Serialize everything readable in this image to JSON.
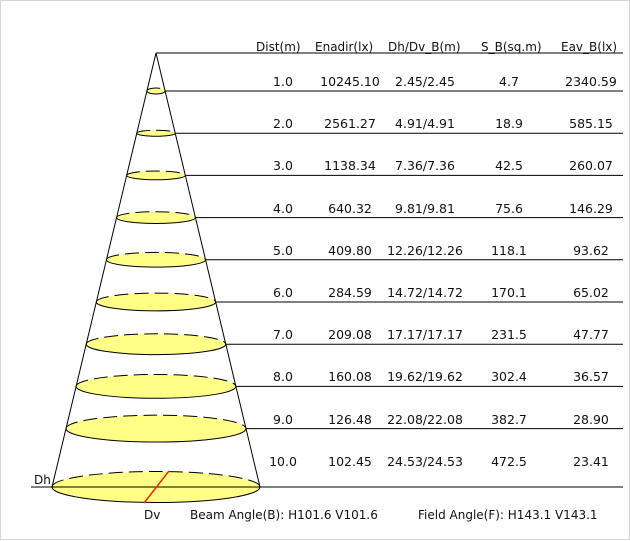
{
  "headers": {
    "dist": "Dist(m)",
    "enadir": "Enadir(lx)",
    "dh_dv": "Dh/Dv_B(m)",
    "s_b": "S_B(sq.m)",
    "eav_b": "Eav_B(lx)"
  },
  "rows": [
    {
      "dist": "1.0",
      "enadir": "10245.10",
      "dh_dv": "2.45/2.45",
      "s_b": "4.7",
      "eav_b": "2340.59"
    },
    {
      "dist": "2.0",
      "enadir": "2561.27",
      "dh_dv": "4.91/4.91",
      "s_b": "18.9",
      "eav_b": "585.15"
    },
    {
      "dist": "3.0",
      "enadir": "1138.34",
      "dh_dv": "7.36/7.36",
      "s_b": "42.5",
      "eav_b": "260.07"
    },
    {
      "dist": "4.0",
      "enadir": "640.32",
      "dh_dv": "9.81/9.81",
      "s_b": "75.6",
      "eav_b": "146.29"
    },
    {
      "dist": "5.0",
      "enadir": "409.80",
      "dh_dv": "12.26/12.26",
      "s_b": "118.1",
      "eav_b": "93.62"
    },
    {
      "dist": "6.0",
      "enadir": "284.59",
      "dh_dv": "14.72/14.72",
      "s_b": "170.1",
      "eav_b": "65.02"
    },
    {
      "dist": "7.0",
      "enadir": "209.08",
      "dh_dv": "17.17/17.17",
      "s_b": "231.5",
      "eav_b": "47.77"
    },
    {
      "dist": "8.0",
      "enadir": "160.08",
      "dh_dv": "19.62/19.62",
      "s_b": "302.4",
      "eav_b": "36.57"
    },
    {
      "dist": "9.0",
      "enadir": "126.48",
      "dh_dv": "22.08/22.08",
      "s_b": "382.7",
      "eav_b": "28.90"
    },
    {
      "dist": "10.0",
      "enadir": "102.45",
      "dh_dv": "24.53/24.53",
      "s_b": "472.5",
      "eav_b": "23.41"
    }
  ],
  "labels": {
    "dh": "Dh",
    "dv": "Dv"
  },
  "beam_caption": "Beam Angle(B): H101.6 V101.6",
  "field_caption": "Field Angle(F): H143.1 V143.1",
  "colors": {
    "ellipse_fill": "#ffff88",
    "line": "#000000",
    "dv_line": "#ff2200"
  }
}
